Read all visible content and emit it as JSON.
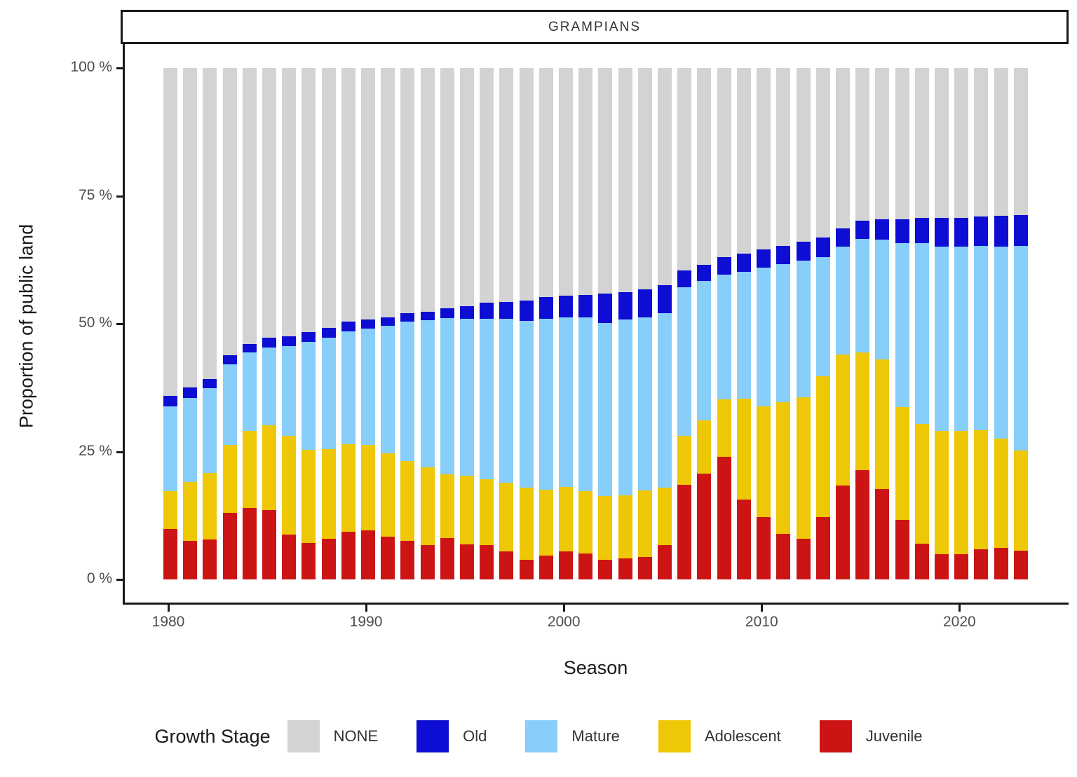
{
  "chart_data": {
    "type": "bar",
    "stacked": true,
    "percent_stacked": true,
    "title": "GRAMPIANS",
    "xlabel": "Season",
    "ylabel": "Proportion of public land",
    "ylim": [
      0,
      100
    ],
    "grid": false,
    "x": [
      1980,
      1981,
      1982,
      1983,
      1984,
      1985,
      1986,
      1987,
      1988,
      1989,
      1990,
      1991,
      1992,
      1993,
      1994,
      1995,
      1996,
      1997,
      1998,
      1999,
      2000,
      2001,
      2002,
      2003,
      2004,
      2005,
      2006,
      2007,
      2008,
      2009,
      2010,
      2011,
      2012,
      2013,
      2014,
      2015,
      2016,
      2017,
      2018,
      2019,
      2020,
      2021,
      2022,
      2023
    ],
    "stack_order_bottom_to_top": [
      "Juvenile",
      "Adolescent",
      "Mature",
      "Old",
      "NONE"
    ],
    "series": [
      {
        "name": "NONE",
        "color": "#d3d3d3",
        "values": [
          64.1,
          62.5,
          60.8,
          56.2,
          53.9,
          52.8,
          52.5,
          51.6,
          50.8,
          49.6,
          49.2,
          48.8,
          48.0,
          47.7,
          47.0,
          46.6,
          45.9,
          45.8,
          45.5,
          44.8,
          44.5,
          44.4,
          44.1,
          43.8,
          43.3,
          42.5,
          39.6,
          38.5,
          37.0,
          36.3,
          35.5,
          34.8,
          34.0,
          33.2,
          31.4,
          29.9,
          29.6,
          29.6,
          29.3,
          29.3,
          29.3,
          29.1,
          28.9,
          28.8
        ]
      },
      {
        "name": "Old",
        "color": "#0d0dd3",
        "values": [
          2.1,
          2.0,
          1.8,
          1.7,
          1.7,
          1.9,
          1.9,
          1.9,
          1.9,
          1.9,
          1.8,
          1.6,
          1.6,
          1.6,
          1.9,
          2.4,
          3.1,
          3.2,
          4.0,
          4.2,
          4.2,
          4.3,
          5.7,
          5.4,
          5.4,
          5.5,
          3.3,
          3.1,
          3.4,
          3.6,
          3.5,
          3.6,
          3.7,
          3.8,
          3.5,
          3.5,
          4.0,
          4.6,
          5.0,
          5.6,
          5.6,
          5.7,
          6.0,
          6.0
        ]
      },
      {
        "name": "Mature",
        "color": "#87cefa",
        "values": [
          16.5,
          16.5,
          16.6,
          15.8,
          15.4,
          15.2,
          17.5,
          21.2,
          21.8,
          22.1,
          22.7,
          25.0,
          27.3,
          28.8,
          30.6,
          30.7,
          31.4,
          32.1,
          32.5,
          33.4,
          33.2,
          34.1,
          33.9,
          34.4,
          33.9,
          34.1,
          29.0,
          27.3,
          24.4,
          24.8,
          27.2,
          26.9,
          26.7,
          23.3,
          21.1,
          22.2,
          23.4,
          32.1,
          35.3,
          36.1,
          36.1,
          36.0,
          37.5,
          40.0
        ]
      },
      {
        "name": "Adolescent",
        "color": "#eec706",
        "values": [
          7.4,
          11.5,
          13.0,
          13.3,
          15.0,
          16.5,
          19.3,
          18.2,
          17.6,
          17.1,
          16.7,
          16.2,
          15.5,
          15.2,
          12.4,
          13.5,
          12.9,
          13.4,
          14.2,
          12.9,
          12.6,
          12.1,
          12.5,
          12.3,
          13.0,
          11.2,
          9.6,
          10.4,
          11.2,
          19.7,
          21.6,
          25.8,
          27.7,
          27.5,
          25.6,
          23.0,
          25.3,
          22.1,
          23.4,
          24.0,
          24.1,
          23.3,
          21.5,
          19.6
        ]
      },
      {
        "name": "Juvenile",
        "color": "#cc1414",
        "values": [
          9.9,
          7.5,
          7.8,
          13.0,
          14.0,
          13.6,
          8.8,
          7.1,
          7.9,
          9.3,
          9.6,
          8.4,
          7.6,
          6.7,
          8.1,
          6.8,
          6.7,
          5.5,
          3.8,
          4.7,
          5.5,
          5.1,
          3.8,
          4.1,
          4.4,
          6.7,
          18.5,
          20.7,
          24.0,
          15.6,
          12.2,
          8.9,
          7.9,
          12.2,
          18.4,
          21.4,
          17.7,
          11.6,
          7.0,
          5.0,
          4.9,
          5.9,
          6.1,
          5.6
        ]
      }
    ],
    "y_ticks": [
      {
        "value": 0,
        "label": "0 %"
      },
      {
        "value": 25,
        "label": "25 %"
      },
      {
        "value": 50,
        "label": "50 %"
      },
      {
        "value": 75,
        "label": "75 %"
      },
      {
        "value": 100,
        "label": "100 %"
      }
    ],
    "x_ticks": [
      {
        "index": 0,
        "label": "1980"
      },
      {
        "index": 10,
        "label": "1990"
      },
      {
        "index": 20,
        "label": "2000"
      },
      {
        "index": 30,
        "label": "2010"
      },
      {
        "index": 40,
        "label": "2020"
      }
    ],
    "legend": {
      "title": "Growth Stage",
      "position": "bottom",
      "entries": [
        {
          "label": "NONE",
          "color": "#d3d3d3"
        },
        {
          "label": "Old",
          "color": "#0d0dd3"
        },
        {
          "label": "Mature",
          "color": "#87cefa"
        },
        {
          "label": "Adolescent",
          "color": "#eec706"
        },
        {
          "label": "Juvenile",
          "color": "#cc1414"
        }
      ]
    }
  },
  "colors": {
    "axis_line": "#1a1a1a",
    "axis_text": "#4d4d4d",
    "strip_text": "#333333",
    "background": "#ffffff"
  }
}
